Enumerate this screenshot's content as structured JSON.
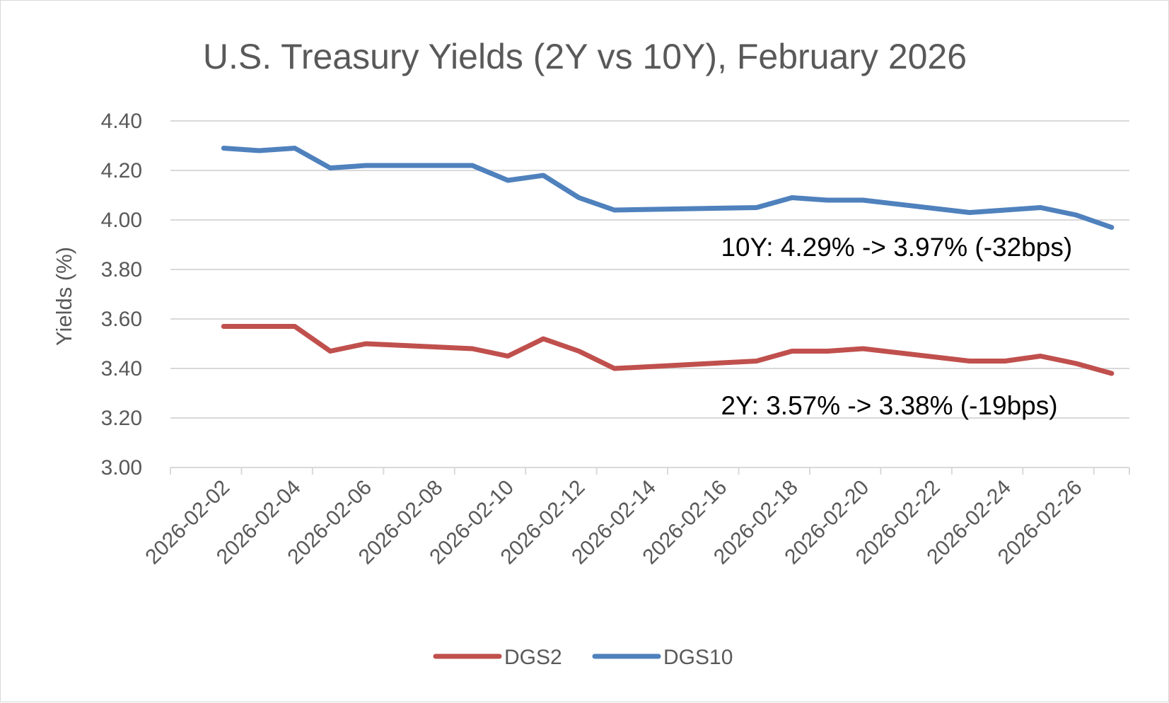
{
  "chart_data": {
    "type": "line",
    "title": "U.S. Treasury Yields (2Y vs 10Y), February 2026",
    "xlabel": "",
    "ylabel": "Yields (%)",
    "ylim": [
      3.0,
      4.4
    ],
    "ytick_step": 0.2,
    "yticks": [
      "3.00",
      "3.20",
      "3.40",
      "3.60",
      "3.80",
      "4.00",
      "4.20",
      "4.40"
    ],
    "xlim": [
      "2026-02-01",
      "2026-02-27"
    ],
    "xticks": [
      "2026-02-02",
      "2026-02-04",
      "2026-02-06",
      "2026-02-08",
      "2026-02-10",
      "2026-02-12",
      "2026-02-14",
      "2026-02-16",
      "2026-02-18",
      "2026-02-20",
      "2026-02-22",
      "2026-02-24",
      "2026-02-26"
    ],
    "grid": true,
    "legend_position": "bottom",
    "series": [
      {
        "name": "DGS2",
        "color": "#C0504D",
        "x": [
          "2026-02-02",
          "2026-02-03",
          "2026-02-04",
          "2026-02-05",
          "2026-02-06",
          "2026-02-09",
          "2026-02-10",
          "2026-02-11",
          "2026-02-12",
          "2026-02-13",
          "2026-02-17",
          "2026-02-18",
          "2026-02-19",
          "2026-02-20",
          "2026-02-23",
          "2026-02-24",
          "2026-02-25",
          "2026-02-26",
          "2026-02-27"
        ],
        "values": [
          3.57,
          3.57,
          3.57,
          3.47,
          3.5,
          3.48,
          3.45,
          3.52,
          3.47,
          3.4,
          3.43,
          3.47,
          3.47,
          3.48,
          3.43,
          3.43,
          3.45,
          3.42,
          3.38
        ]
      },
      {
        "name": "DGS10",
        "color": "#4F81BD",
        "x": [
          "2026-02-02",
          "2026-02-03",
          "2026-02-04",
          "2026-02-05",
          "2026-02-06",
          "2026-02-09",
          "2026-02-10",
          "2026-02-11",
          "2026-02-12",
          "2026-02-13",
          "2026-02-17",
          "2026-02-18",
          "2026-02-19",
          "2026-02-20",
          "2026-02-23",
          "2026-02-24",
          "2026-02-25",
          "2026-02-26",
          "2026-02-27"
        ],
        "values": [
          4.29,
          4.28,
          4.29,
          4.21,
          4.22,
          4.22,
          4.16,
          4.18,
          4.09,
          4.04,
          4.05,
          4.09,
          4.08,
          4.08,
          4.03,
          4.04,
          4.05,
          4.02,
          3.97
        ]
      }
    ],
    "annotations": [
      {
        "text": "10Y: 4.29% -> 3.97% (-32bps)",
        "x": "2026-02-16",
        "y": 3.855
      },
      {
        "text": "2Y: 3.57% -> 3.38% (-19bps)",
        "x": "2026-02-16",
        "y": 3.215
      }
    ]
  }
}
